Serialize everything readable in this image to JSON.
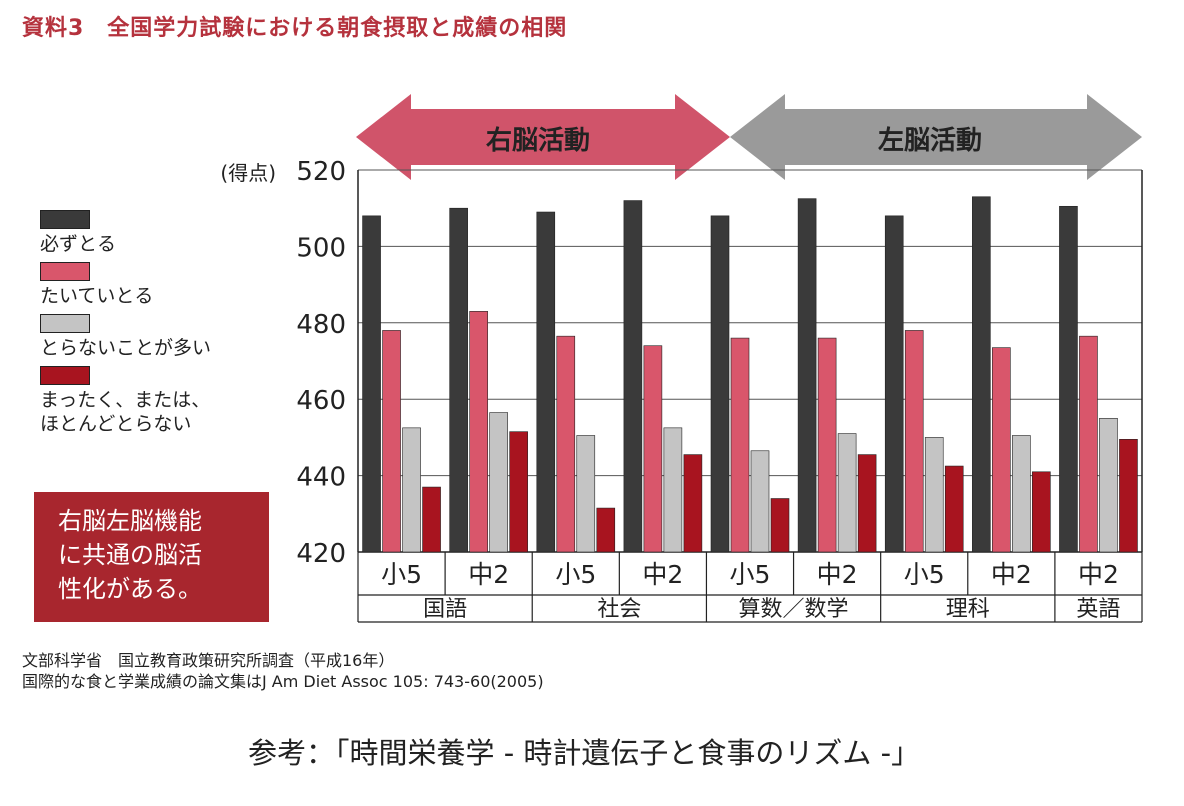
{
  "title": "資料3　全国学力試験における朝食摂取と成績の相関",
  "arrows": {
    "right_brain": {
      "label": "右脳活動",
      "color": "#d0546a"
    },
    "left_brain": {
      "label": "左脳活動",
      "color": "#9a9a9a"
    }
  },
  "legend": [
    {
      "label": "必ずとる",
      "color": "#3a3a3a"
    },
    {
      "label": "たいていとる",
      "color": "#d9566b"
    },
    {
      "label": "とらないことが多い",
      "color": "#c4c4c4"
    },
    {
      "label": "まったく、または、\nほとんどとらない",
      "color": "#a8141f"
    }
  ],
  "callout": "右脳左脳機能\nに共通の脳活\n性化がある。",
  "source": {
    "line1": "文部科学省　国立教育政策研究所調査（平成16年）",
    "line2": "国際的な食と学業成績の論文集はJ Am Diet Assoc 105: 743-60(2005)"
  },
  "reference": "参考：「時間栄養学 - 時計遺伝子と食事のリズム -」",
  "chart_data": {
    "type": "bar",
    "ylabel": "(得点)",
    "ylim": [
      420,
      520
    ],
    "yticks": [
      420,
      440,
      460,
      480,
      500,
      520
    ],
    "grid": true,
    "categories": [
      "小5",
      "中2",
      "小5",
      "中2",
      "小5",
      "中2",
      "小5",
      "中2",
      "中2"
    ],
    "groups": [
      {
        "label": "国語",
        "count": 2
      },
      {
        "label": "社会",
        "count": 2
      },
      {
        "label": "算数／数学",
        "count": 2
      },
      {
        "label": "理科",
        "count": 2
      },
      {
        "label": "英語",
        "count": 1
      }
    ],
    "series": [
      {
        "name": "必ずとる",
        "values": [
          508,
          510,
          509,
          512,
          508,
          512.5,
          508,
          513,
          510.5
        ]
      },
      {
        "name": "たいていとる",
        "values": [
          478,
          483,
          476.5,
          474,
          476,
          476,
          478,
          473.5,
          476.5
        ]
      },
      {
        "name": "とらないことが多い",
        "values": [
          452.5,
          456.5,
          450.5,
          452.5,
          446.5,
          451,
          450,
          450.5,
          455
        ]
      },
      {
        "name": "まったく、または、ほとんどとらない",
        "values": [
          437,
          451.5,
          431.5,
          445.5,
          434,
          445.5,
          442.5,
          441,
          449.5
        ]
      }
    ]
  }
}
